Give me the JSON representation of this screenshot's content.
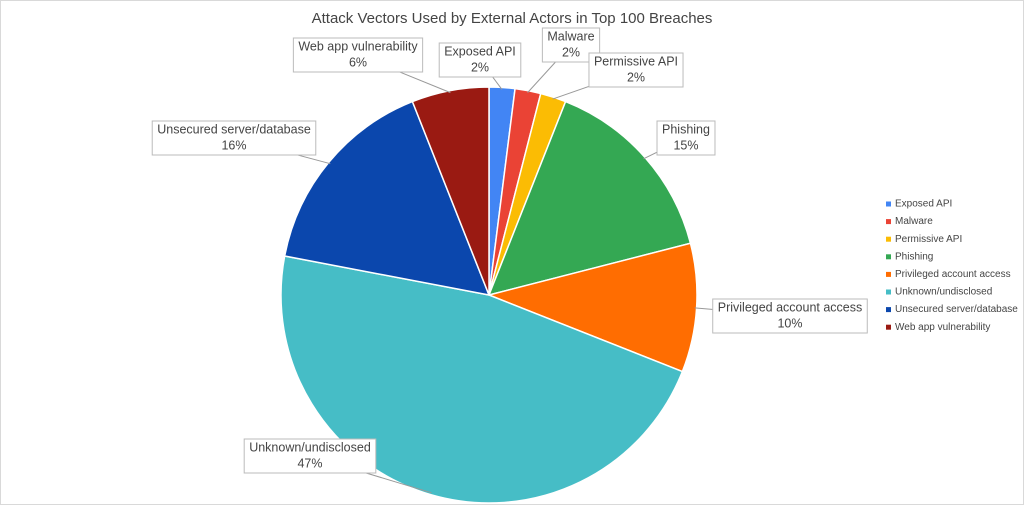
{
  "chart_data": {
    "type": "pie",
    "title": "Attack Vectors Used by External Actors in Top 100 Breaches",
    "categories": [
      "Exposed API",
      "Malware",
      "Permissive API",
      "Phishing",
      "Privileged account access",
      "Unknown/undisclosed",
      "Unsecured server/database",
      "Web app vulnerability"
    ],
    "values": [
      2,
      2,
      2,
      15,
      10,
      47,
      16,
      6
    ],
    "value_labels": [
      "2%",
      "2%",
      "2%",
      "15%",
      "10%",
      "47%",
      "16%",
      "6%"
    ],
    "colors": [
      "#4285f4",
      "#ea4335",
      "#fbbc04",
      "#34a853",
      "#ff6d01",
      "#46bdc6",
      "#0b47ad",
      "#9a1a12"
    ],
    "legend": "right"
  }
}
